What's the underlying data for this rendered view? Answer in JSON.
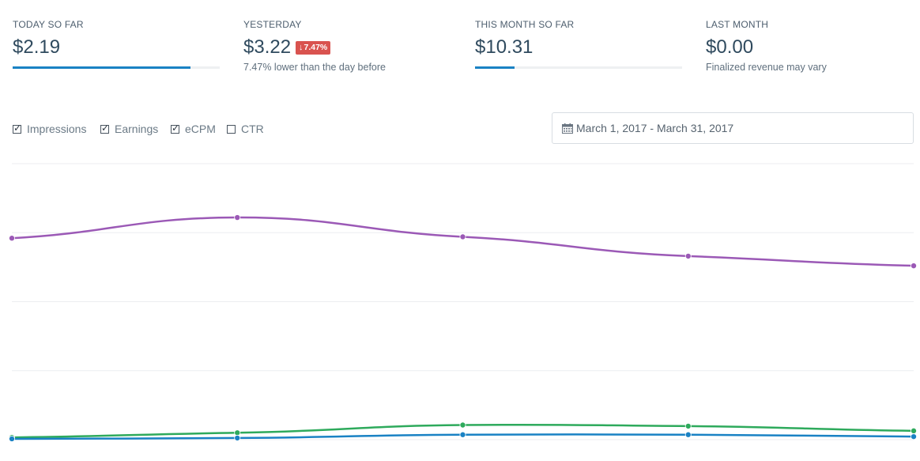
{
  "stats": [
    {
      "label": "TODAY SO FAR",
      "value": "$2.19",
      "progress": 0.86
    },
    {
      "label": "YESTERDAY",
      "value": "$3.22",
      "badge": "7.47%",
      "badge_direction": "down",
      "subtext": "7.47% lower than the day before"
    },
    {
      "label": "THIS MONTH SO FAR",
      "value": "$10.31",
      "progress": 0.19
    },
    {
      "label": "LAST MONTH",
      "value": "$0.00",
      "subtext": "Finalized revenue may vary"
    }
  ],
  "legend": [
    {
      "label": "Impressions",
      "checked": true
    },
    {
      "label": "Earnings",
      "checked": true
    },
    {
      "label": "eCPM",
      "checked": true
    },
    {
      "label": "CTR",
      "checked": false
    }
  ],
  "date_range": {
    "text": "March 1, 2017 - March 31, 2017",
    "icon": "calendar-icon"
  },
  "colors": {
    "accent": "#1a82c4",
    "badge": "#d9534f",
    "ecpm": "#9b59b6",
    "earnings": "#2eaa5c",
    "impressions": "#1a82c4"
  },
  "chart_data": {
    "type": "line",
    "x": [
      0,
      1,
      2,
      3,
      4
    ],
    "ylim": [
      0,
      100
    ],
    "grid": true,
    "series": [
      {
        "key": "ecpm",
        "values": [
          73,
          80.5,
          73.5,
          66.5,
          63
        ]
      },
      {
        "key": "earnings",
        "values": [
          0.8,
          2.5,
          5.3,
          4.9,
          3.2
        ]
      },
      {
        "key": "impressions",
        "values": [
          0.3,
          0.6,
          1.8,
          1.8,
          1.1
        ]
      }
    ]
  }
}
